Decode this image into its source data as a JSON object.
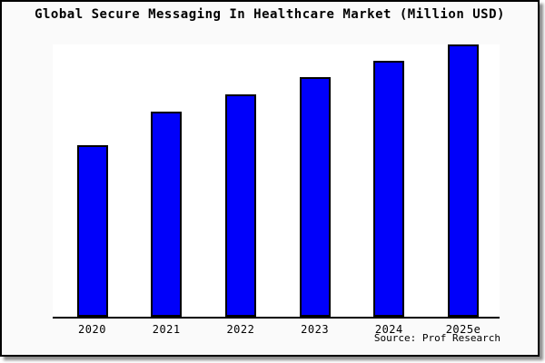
{
  "title": "Global Secure Messaging In Healthcare Market (Million USD)",
  "source": "Source: Prof Research",
  "colors": {
    "bar_fill": "#0000fa",
    "bar_border": "#000000",
    "panel_background": "#fafafa",
    "plot_background": "#ffffff",
    "frame_border": "#000000",
    "text": "#000000"
  },
  "chart_data": {
    "type": "bar",
    "title": "Global Secure Messaging In Healthcare Market (Million USD)",
    "categories": [
      "2020",
      "2021",
      "2022",
      "2023",
      "2024",
      "2025e"
    ],
    "values": [
      63,
      75.3,
      81.7,
      88,
      94,
      100
    ],
    "values_note": "No y-axis or gridlines shown; values estimated from bar heights as relative index with tallest bar (2025e) = 100",
    "xlabel": "",
    "ylabel": "",
    "ylim": [
      0,
      100.7
    ],
    "grid": false,
    "legend": false,
    "y_axis_visible": false,
    "x_axis_visible": true,
    "bar_color": "#0000fa"
  }
}
